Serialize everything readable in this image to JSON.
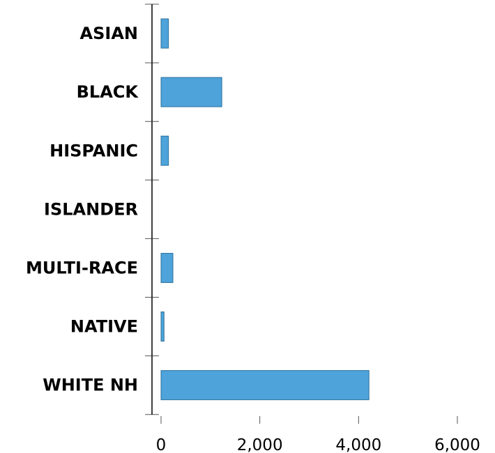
{
  "chart_data": {
    "type": "bar",
    "orientation": "horizontal",
    "categories": [
      "ASIAN",
      "BLACK",
      "HISPANIC",
      "ISLANDER",
      "MULTI-RACE",
      "NATIVE",
      "WHITE NH"
    ],
    "values": [
      150,
      1230,
      150,
      0,
      240,
      60,
      4210
    ],
    "xlim": [
      0,
      6000
    ],
    "xticks": [
      0,
      2000,
      4000,
      6000
    ],
    "xtick_labels": [
      "0",
      "2,000",
      "4,000",
      "6,000"
    ],
    "bar_color": "#4da3da",
    "grid": false,
    "legend": "none"
  }
}
